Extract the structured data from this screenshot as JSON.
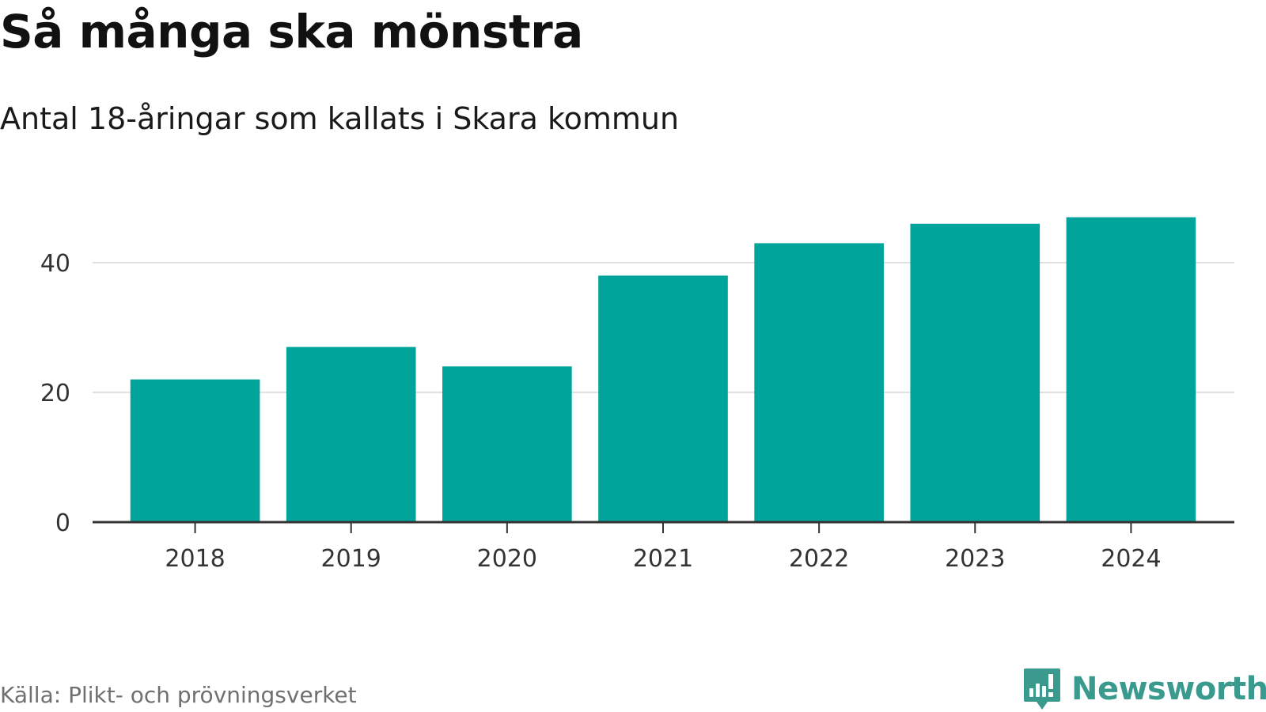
{
  "title": "Så många ska mönstra",
  "subtitle": "Antal 18-åringar som kallats i Skara kommun",
  "source": "Källa: Plikt- och prövningsverket",
  "brand": {
    "name": "Newsworthy",
    "icon": "newsworthy-bar-chart-logo-icon",
    "color": "#3a9a8e"
  },
  "chart_data": {
    "type": "bar",
    "categories": [
      "2018",
      "2019",
      "2020",
      "2021",
      "2022",
      "2023",
      "2024"
    ],
    "values": [
      22,
      27,
      24,
      38,
      43,
      46,
      47
    ],
    "title": "Så många ska mönstra",
    "subtitle": "Antal 18-åringar som kallats i Skara kommun",
    "xlabel": "",
    "ylabel": "",
    "ylim": [
      0,
      50
    ],
    "yticks": [
      0,
      20,
      40
    ],
    "grid": true,
    "legend": "none",
    "bar_color": "#00a49a",
    "gridline_color": "#e0e0e0",
    "axis_color": "#333333"
  }
}
